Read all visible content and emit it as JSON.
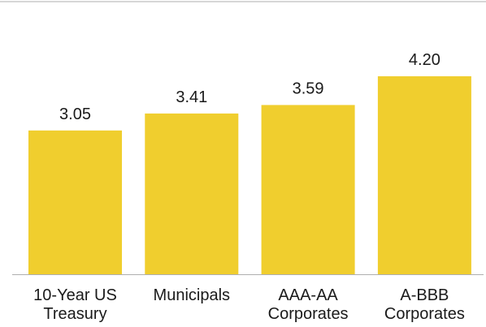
{
  "chart_data": {
    "type": "bar",
    "categories": [
      [
        "10-Year US",
        "Treasury"
      ],
      [
        "Municipals"
      ],
      [
        "AAA-AA",
        "Corporates"
      ],
      [
        "A-BBB",
        "Corporates"
      ]
    ],
    "values": [
      3.05,
      3.41,
      3.59,
      4.2
    ],
    "data_labels": [
      "3.05",
      "3.41",
      "3.59",
      "4.20"
    ],
    "title": "",
    "xlabel": "",
    "ylabel": "",
    "ylim": [
      0,
      4.8
    ],
    "grid": false,
    "legend": "none",
    "bar_color": "#F0CE2E",
    "rule_color": "#C8C8C8",
    "axis_color": "#AFAFAF",
    "text_color": "#1a1a1a"
  }
}
